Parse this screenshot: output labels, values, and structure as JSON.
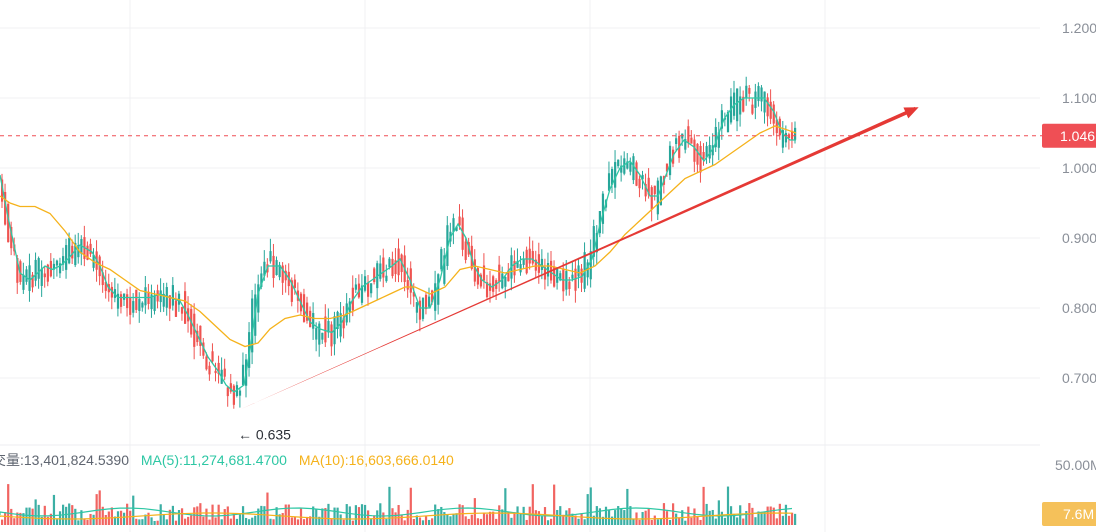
{
  "price_axis": {
    "ticks": [
      "1.200",
      "1.100",
      "1.000",
      "0.900",
      "0.800",
      "0.700"
    ],
    "tick_values": [
      1.2,
      1.1,
      1.0,
      0.9,
      0.8,
      0.7
    ]
  },
  "current_price": {
    "label": "1.046",
    "value": 1.046
  },
  "low_marker": {
    "label": "← 0.635",
    "value": 0.635
  },
  "volume_axis": {
    "tick": "50.00M",
    "current_label": "7.6M"
  },
  "volume_legend": {
    "vol": "交量:13,401,824.5390",
    "ma5": "MA(5):11,274,681.4700",
    "ma10": "MA(10):16,603,666.0140"
  },
  "colors": {
    "up": "#26a69a",
    "down": "#ef5350",
    "ma_fast": "#2ec7a4",
    "ma_slow": "#f5b21b",
    "trendline": "#e53935",
    "price_tag": "#ef4f55",
    "volume_tag": "#f5c15a"
  },
  "chart_data": {
    "type": "candlestick",
    "y_range": [
      0.62,
      1.23
    ],
    "grid": true,
    "series": [
      {
        "name": "MA(5)",
        "type": "line",
        "points": [
          [
            0,
            0.99
          ],
          [
            8,
            0.93
          ],
          [
            20,
            0.85
          ],
          [
            30,
            0.84
          ],
          [
            45,
            0.86
          ],
          [
            52,
            0.855
          ],
          [
            60,
            0.86
          ],
          [
            68,
            0.87
          ],
          [
            80,
            0.89
          ],
          [
            92,
            0.88
          ],
          [
            100,
            0.86
          ],
          [
            108,
            0.83
          ],
          [
            118,
            0.815
          ],
          [
            130,
            0.815
          ],
          [
            140,
            0.815
          ],
          [
            150,
            0.815
          ],
          [
            160,
            0.82
          ],
          [
            170,
            0.815
          ],
          [
            180,
            0.81
          ],
          [
            188,
            0.79
          ],
          [
            198,
            0.76
          ],
          [
            208,
            0.73
          ],
          [
            218,
            0.71
          ],
          [
            226,
            0.69
          ],
          [
            234,
            0.68
          ],
          [
            244,
            0.69
          ],
          [
            250,
            0.74
          ],
          [
            258,
            0.82
          ],
          [
            268,
            0.86
          ],
          [
            280,
            0.86
          ],
          [
            290,
            0.84
          ],
          [
            300,
            0.81
          ],
          [
            310,
            0.78
          ],
          [
            320,
            0.77
          ],
          [
            332,
            0.765
          ],
          [
            342,
            0.78
          ],
          [
            352,
            0.81
          ],
          [
            362,
            0.83
          ],
          [
            372,
            0.84
          ],
          [
            382,
            0.85
          ],
          [
            392,
            0.86
          ],
          [
            400,
            0.87
          ],
          [
            410,
            0.84
          ],
          [
            420,
            0.8
          ],
          [
            430,
            0.8
          ],
          [
            440,
            0.84
          ],
          [
            450,
            0.9
          ],
          [
            458,
            0.92
          ],
          [
            466,
            0.9
          ],
          [
            474,
            0.86
          ],
          [
            482,
            0.84
          ],
          [
            492,
            0.83
          ],
          [
            502,
            0.84
          ],
          [
            512,
            0.86
          ],
          [
            522,
            0.87
          ],
          [
            532,
            0.87
          ],
          [
            542,
            0.86
          ],
          [
            552,
            0.85
          ],
          [
            562,
            0.84
          ],
          [
            572,
            0.84
          ],
          [
            582,
            0.845
          ],
          [
            592,
            0.87
          ],
          [
            600,
            0.92
          ],
          [
            610,
            0.97
          ],
          [
            620,
            1.0
          ],
          [
            630,
            1.01
          ],
          [
            640,
            0.99
          ],
          [
            650,
            0.96
          ],
          [
            658,
            0.96
          ],
          [
            666,
            0.99
          ],
          [
            674,
            1.02
          ],
          [
            684,
            1.04
          ],
          [
            694,
            1.03
          ],
          [
            704,
            1.01
          ],
          [
            714,
            1.03
          ],
          [
            724,
            1.07
          ],
          [
            734,
            1.09
          ],
          [
            744,
            1.1
          ],
          [
            754,
            1.1
          ],
          [
            764,
            1.1
          ],
          [
            774,
            1.08
          ],
          [
            782,
            1.05
          ],
          [
            790,
            1.04
          ],
          [
            796,
            1.04
          ]
        ]
      },
      {
        "name": "MA(10)",
        "type": "line",
        "points": [
          [
            0,
            0.96
          ],
          [
            10,
            0.95
          ],
          [
            20,
            0.945
          ],
          [
            35,
            0.945
          ],
          [
            50,
            0.935
          ],
          [
            65,
            0.91
          ],
          [
            80,
            0.88
          ],
          [
            95,
            0.865
          ],
          [
            110,
            0.855
          ],
          [
            125,
            0.84
          ],
          [
            140,
            0.825
          ],
          [
            155,
            0.82
          ],
          [
            170,
            0.815
          ],
          [
            185,
            0.81
          ],
          [
            200,
            0.795
          ],
          [
            215,
            0.775
          ],
          [
            230,
            0.755
          ],
          [
            245,
            0.745
          ],
          [
            258,
            0.75
          ],
          [
            270,
            0.77
          ],
          [
            285,
            0.785
          ],
          [
            300,
            0.79
          ],
          [
            315,
            0.785
          ],
          [
            330,
            0.785
          ],
          [
            345,
            0.79
          ],
          [
            360,
            0.8
          ],
          [
            375,
            0.81
          ],
          [
            390,
            0.82
          ],
          [
            405,
            0.83
          ],
          [
            415,
            0.83
          ],
          [
            430,
            0.82
          ],
          [
            445,
            0.83
          ],
          [
            460,
            0.855
          ],
          [
            475,
            0.86
          ],
          [
            490,
            0.855
          ],
          [
            505,
            0.85
          ],
          [
            520,
            0.855
          ],
          [
            535,
            0.86
          ],
          [
            550,
            0.86
          ],
          [
            565,
            0.855
          ],
          [
            580,
            0.85
          ],
          [
            595,
            0.86
          ],
          [
            610,
            0.88
          ],
          [
            625,
            0.905
          ],
          [
            640,
            0.925
          ],
          [
            655,
            0.945
          ],
          [
            670,
            0.965
          ],
          [
            685,
            0.985
          ],
          [
            700,
            0.995
          ],
          [
            715,
            1.005
          ],
          [
            730,
            1.02
          ],
          [
            745,
            1.035
          ],
          [
            760,
            1.05
          ],
          [
            775,
            1.06
          ],
          [
            786,
            1.055
          ],
          [
            796,
            1.05
          ]
        ]
      }
    ],
    "annotations": [
      {
        "type": "horizontal_line",
        "value": 1.046,
        "style": "dashed"
      },
      {
        "type": "trendline",
        "from": [
          240,
          0.655
        ],
        "to": [
          915,
          1.0845
        ]
      }
    ]
  }
}
